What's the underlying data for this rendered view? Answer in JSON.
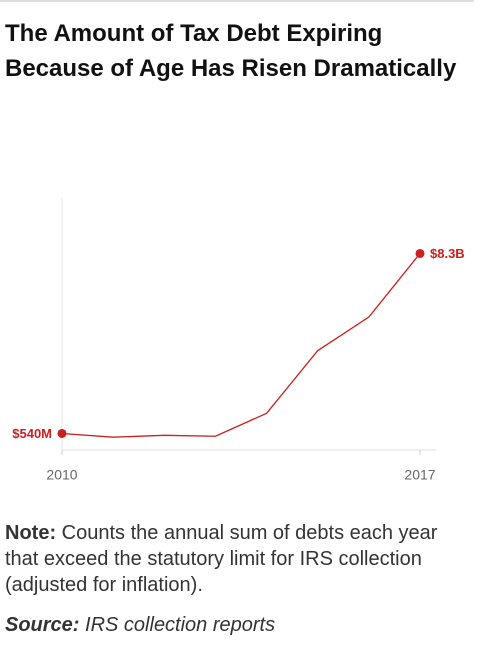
{
  "chart_data": {
    "type": "line",
    "title": "The Amount of Tax Debt Expiring Because of Age Has Risen Dramatically",
    "x": [
      2010,
      2011,
      2012,
      2013,
      2014,
      2015,
      2016,
      2017
    ],
    "values": [
      540000000,
      380000000,
      460000000,
      420000000,
      1410000000,
      4110000000,
      5560000000,
      8300000000
    ],
    "value_labels": [
      "$540M",
      null,
      null,
      null,
      null,
      null,
      null,
      "$8.3B"
    ],
    "color": "#cc1f1f",
    "xlim": [
      2010,
      2017
    ],
    "xticks": [
      2010,
      2017
    ],
    "ylim": [
      0,
      10000000000
    ],
    "note_label": "Note:",
    "note": "Counts the annual sum of debts each year that exceed the statutory limit for IRS collection (adjusted for inflation).",
    "source_label": "Source:",
    "source": "IRS collection reports"
  }
}
